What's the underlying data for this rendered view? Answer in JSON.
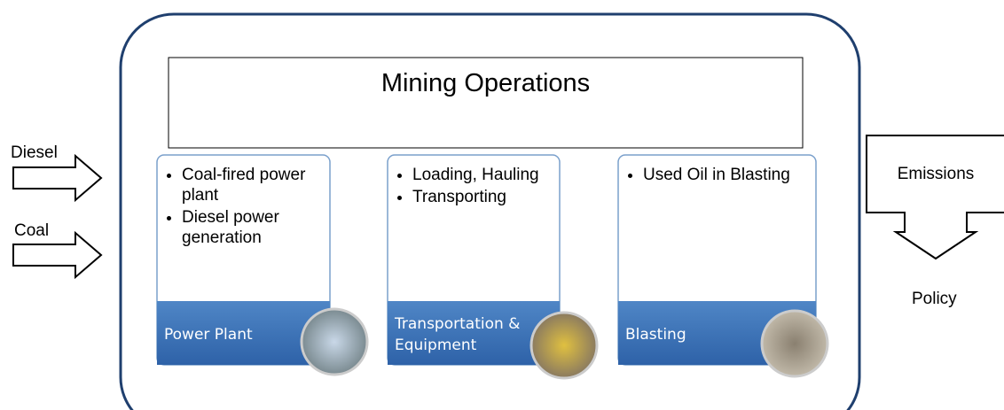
{
  "inputs": [
    {
      "label": "Diesel"
    },
    {
      "label": "Coal"
    }
  ],
  "title": "Mining Operations",
  "cards": [
    {
      "bullets": [
        "Coal-fired power plant",
        "Diesel power generation"
      ],
      "label": "Power Plant"
    },
    {
      "bullets": [
        "Loading, Hauling",
        "Transporting"
      ],
      "label": "Transportation & Equipment"
    },
    {
      "bullets": [
        "Used Oil in Blasting"
      ],
      "label": "Blasting"
    }
  ],
  "output": {
    "label": "Emissions",
    "policy": "Policy"
  }
}
